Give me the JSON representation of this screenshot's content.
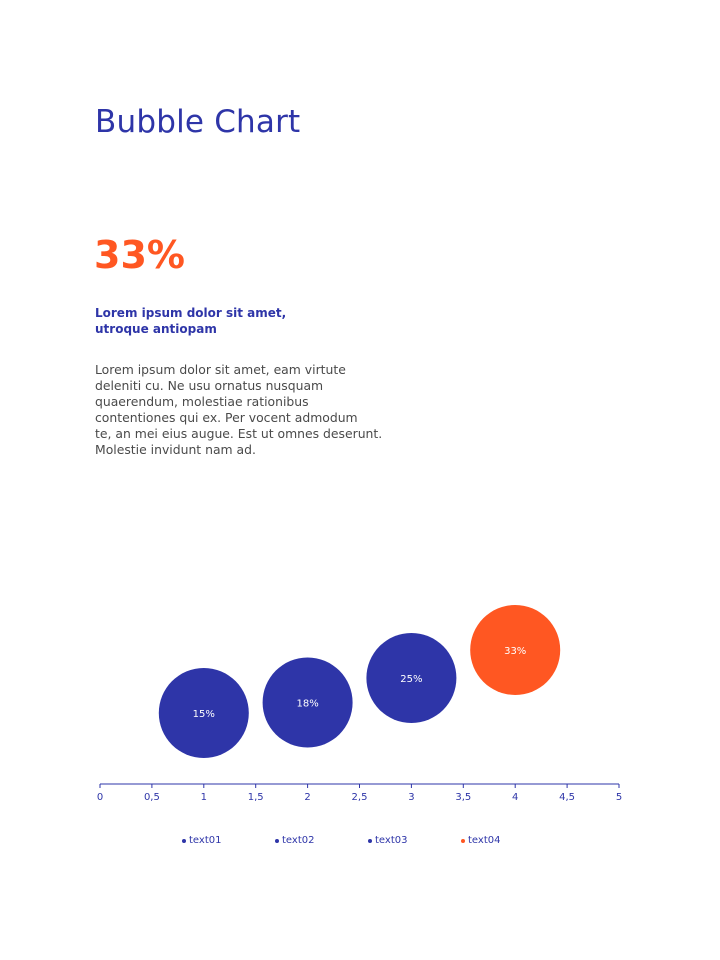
{
  "page": {
    "title": "Bubble Chart",
    "stat": "33%",
    "subheading_lines": [
      "Lorem ipsum dolor sit amet,",
      "utroque antiopam"
    ],
    "body_lines": [
      "Lorem ipsum dolor sit amet, eam virtute",
      "deleniti cu. Ne usu ornatus nusquam",
      "quaerendum, molestiae rationibus",
      "contentiones qui ex. Per vocent admodum",
      "te, an mei eius augue. Est ut omnes deserunt.",
      "Molestie invidunt nam ad."
    ]
  },
  "colors": {
    "primary": "#2e35a8",
    "accent": "#ff5722",
    "text": "#4a4a4a"
  },
  "chart_data": {
    "type": "scatter",
    "title": "",
    "xlabel": "",
    "ylabel": "",
    "xlim": [
      0,
      5
    ],
    "x_ticks": [
      "0",
      "0,5",
      "1",
      "1,5",
      "2",
      "2,5",
      "3",
      "3,5",
      "4",
      "4,5",
      "5"
    ],
    "grid": false,
    "legend_position": "bottom",
    "series": [
      {
        "name": "text01",
        "x": 1,
        "y": 15,
        "label": "15%",
        "color": "#2e35a8"
      },
      {
        "name": "text02",
        "x": 2,
        "y": 18,
        "label": "18%",
        "color": "#2e35a8"
      },
      {
        "name": "text03",
        "x": 3,
        "y": 25,
        "label": "25%",
        "color": "#2e35a8"
      },
      {
        "name": "text04",
        "x": 4,
        "y": 33,
        "label": "33%",
        "color": "#ff5722"
      }
    ]
  }
}
